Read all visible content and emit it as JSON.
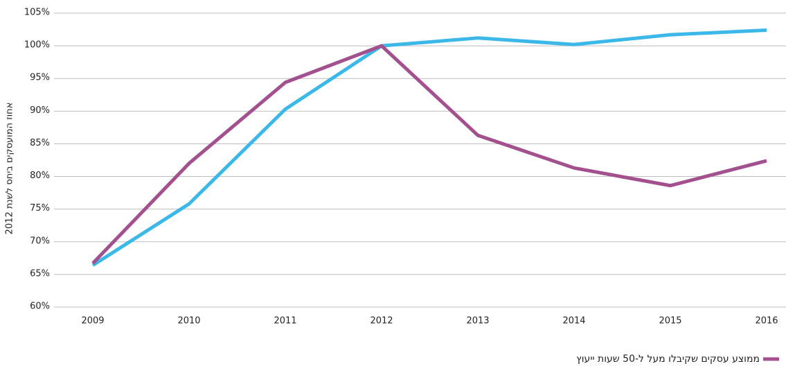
{
  "chart_data": {
    "type": "line",
    "y_label": "אחוז המועסקים ביחס לשנת 2012",
    "categories": [
      "2009",
      "2010",
      "2011",
      "2012",
      "2013",
      "2014",
      "2015",
      "2016"
    ],
    "series": [
      {
        "color": "#3bb8e8",
        "values": [
          66.4,
          75.8,
          90.3,
          100,
          101.2,
          100.2,
          101.7,
          102.4
        ]
      },
      {
        "name": "ממוצע עסקים שקיבלו מעל ל-50 שעות ייעוץ",
        "color": "#a3508f",
        "values": [
          66.7,
          82.0,
          94.4,
          100,
          86.3,
          81.3,
          78.6,
          82.4
        ]
      }
    ],
    "ylim": [
      60,
      105
    ],
    "yticks": [
      {
        "value": 60,
        "label": "60%"
      },
      {
        "value": 65,
        "label": "65%"
      },
      {
        "value": 70,
        "label": "70%"
      },
      {
        "value": 75,
        "label": "75%"
      },
      {
        "value": 80,
        "label": "80%"
      },
      {
        "value": 85,
        "label": "85%"
      },
      {
        "value": 90,
        "label": "90%"
      },
      {
        "value": 95,
        "label": "95%"
      },
      {
        "value": 100,
        "label": "100%"
      },
      {
        "value": 105,
        "label": "105%"
      }
    ],
    "grid": true,
    "legend": "bottom-right"
  }
}
